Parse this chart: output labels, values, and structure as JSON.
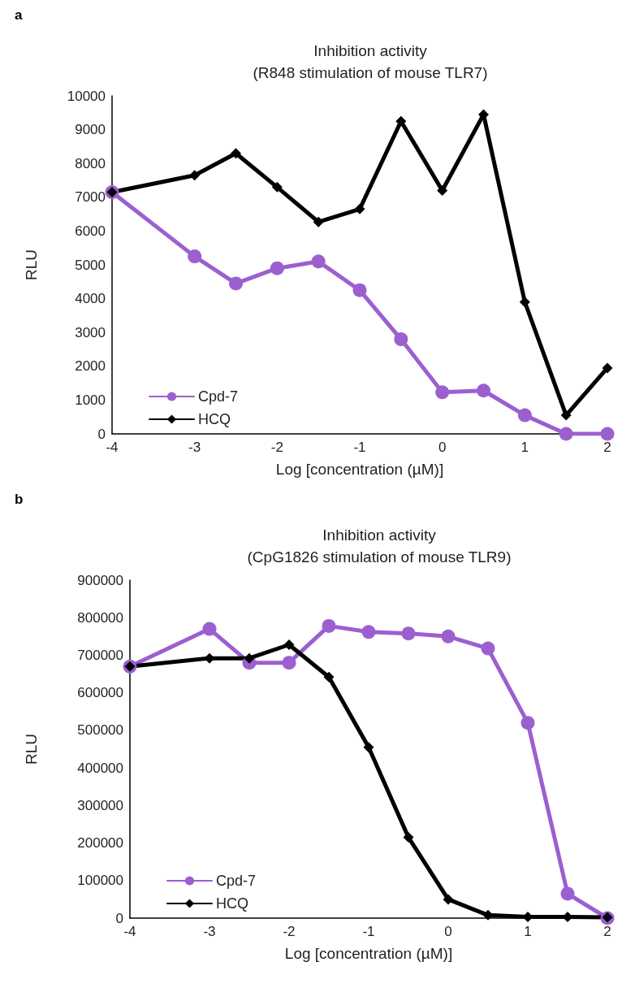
{
  "chart_data": [
    {
      "type": "line",
      "title": "Inhibition activity",
      "subtitle": "(R848 stimulation of mouse TLR7)",
      "xlabel": "Log [concentration (µM)]",
      "ylabel": "RLU",
      "annotations": [
        "a"
      ],
      "x": [
        -4,
        -3,
        -2.5,
        -2,
        -1.5,
        -1,
        -0.5,
        0,
        0.5,
        1,
        1.5,
        2
      ],
      "series": [
        {
          "name": "Cpd-7",
          "color": "#9c5fd0",
          "marker": "circle",
          "values": [
            7150,
            5250,
            4450,
            4900,
            5100,
            4250,
            2800,
            1230,
            1280,
            550,
            0,
            0
          ]
        },
        {
          "name": "HCQ",
          "color": "#000000",
          "marker": "diamond",
          "values": [
            7150,
            7650,
            8300,
            7300,
            6270,
            6650,
            9250,
            7200,
            9450,
            3900,
            550,
            1950
          ]
        }
      ],
      "xlim": [
        -4,
        2
      ],
      "xticks": [
        -4,
        -3,
        -2,
        -1,
        0,
        1,
        2
      ],
      "ylim": [
        0,
        10000
      ],
      "yticks": [
        0,
        1000,
        2000,
        3000,
        4000,
        5000,
        6000,
        7000,
        8000,
        9000,
        10000
      ],
      "grid": false,
      "legend": "bottom left",
      "line_style": "solid"
    },
    {
      "type": "line",
      "title": "Inhibition activity",
      "subtitle": "(CpG1826 stimulation of mouse TLR9)",
      "xlabel": "Log [concentration (µM)]",
      "ylabel": "RLU",
      "annotations": [
        "b"
      ],
      "x": [
        -4,
        -3,
        -2.5,
        -2,
        -1.5,
        -1,
        -0.5,
        0,
        0.5,
        1,
        1.5,
        2
      ],
      "series": [
        {
          "name": "Cpd-7",
          "color": "#9c5fd0",
          "marker": "circle",
          "values": [
            670000,
            770000,
            680000,
            680000,
            778000,
            762000,
            758000,
            750000,
            718000,
            520000,
            65000,
            0
          ]
        },
        {
          "name": "HCQ",
          "color": "#000000",
          "marker": "diamond",
          "values": [
            670000,
            692000,
            692000,
            728000,
            642000,
            455000,
            215000,
            50000,
            8000,
            3000,
            3000,
            2000
          ]
        }
      ],
      "xlim": [
        -4,
        2
      ],
      "xticks": [
        -4,
        -3,
        -2,
        -1,
        0,
        1,
        2
      ],
      "ylim": [
        0,
        900000
      ],
      "yticks": [
        0,
        100000,
        200000,
        300000,
        400000,
        500000,
        600000,
        700000,
        800000,
        900000
      ],
      "grid": false,
      "legend": "bottom left",
      "line_style": "solid"
    }
  ]
}
